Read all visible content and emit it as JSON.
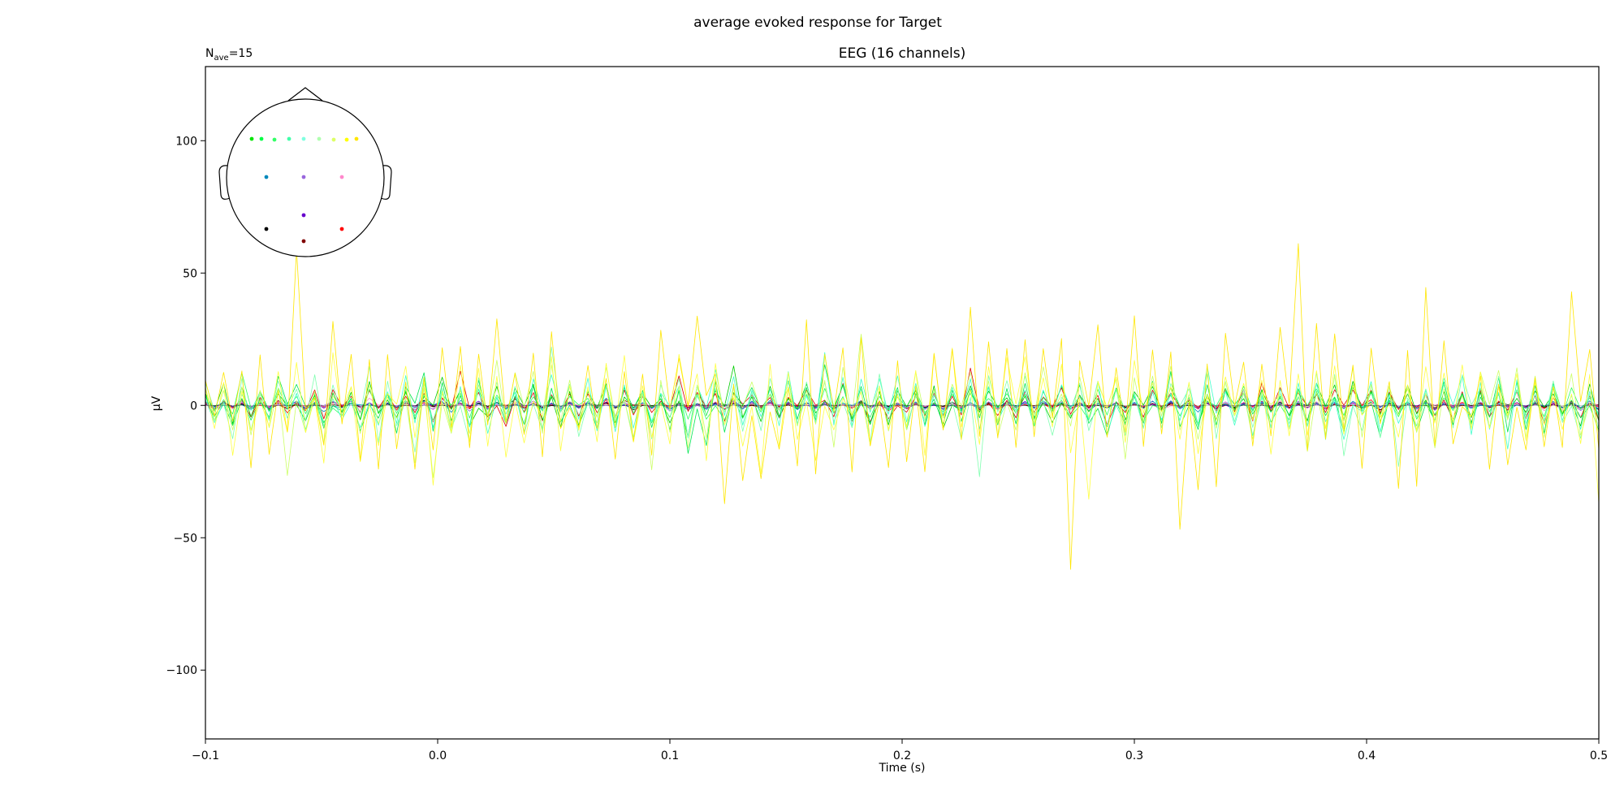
{
  "figure": {
    "suptitle": "average evoked response for Target",
    "nave_base": "N",
    "nave_sub": "ave",
    "nave_value": "=15"
  },
  "chart_data": {
    "type": "line",
    "title": "EEG (16 channels)",
    "xlabel": "Time (s)",
    "ylabel": "µV",
    "xlim": [
      -0.1,
      0.5
    ],
    "ylim": [
      -126,
      128
    ],
    "x_ticks": [
      -0.1,
      0.0,
      0.1,
      0.2,
      0.3,
      0.4,
      0.5
    ],
    "x_tick_labels": [
      "−0.1",
      "0.0",
      "0.1",
      "0.2",
      "0.3",
      "0.4",
      "0.5"
    ],
    "y_ticks": [
      -100,
      -50,
      0,
      50,
      100
    ],
    "y_tick_labels": [
      "−100",
      "−50",
      "0",
      "50",
      "100"
    ],
    "sampling": {
      "t_start": -0.1,
      "t_end": 0.5,
      "n_samples": 154
    },
    "series": [
      {
        "color": "#ffe600",
        "amplitude": 52,
        "seed": 11
      },
      {
        "color": "#ffff40",
        "amplitude": 30,
        "seed": 23
      },
      {
        "color": "#ccff66",
        "amplitude": 22,
        "seed": 37
      },
      {
        "color": "#80ffb0",
        "amplitude": 20,
        "seed": 41
      },
      {
        "color": "#40ffcc",
        "amplitude": 18,
        "seed": 53
      },
      {
        "color": "#00e650",
        "amplitude": 17,
        "seed": 67
      },
      {
        "color": "#00cc00",
        "amplitude": 13,
        "seed": 71
      },
      {
        "color": "#30ff60",
        "amplitude": 11,
        "seed": 83
      },
      {
        "color": "#e00000",
        "amplitude": 10,
        "seed": 97
      },
      {
        "color": "#0088bb",
        "amplitude": 3,
        "seed": 101
      },
      {
        "color": "#9966dd",
        "amplitude": 2.5,
        "seed": 113
      },
      {
        "color": "#ff88cc",
        "amplitude": 2.5,
        "seed": 127
      },
      {
        "color": "#6600cc",
        "amplitude": 2,
        "seed": 131
      },
      {
        "color": "#000000",
        "amplitude": 2,
        "seed": 149
      },
      {
        "color": "#800000",
        "amplitude": 1.5,
        "seed": 151
      },
      {
        "color": "#ff0000",
        "amplitude": 2,
        "seed": 163
      }
    ],
    "sensor_inset": {
      "sensor_colors": [
        "#00e600",
        "#00ff44",
        "#33ff66",
        "#40ffaa",
        "#80ffe0",
        "#b0ffb0",
        "#ddff66",
        "#ffff00",
        "#ffe600",
        "#0088bb",
        "#9966dd",
        "#ff88cc",
        "#6600cc",
        "#000000",
        "#800000",
        "#ff0000"
      ]
    }
  }
}
